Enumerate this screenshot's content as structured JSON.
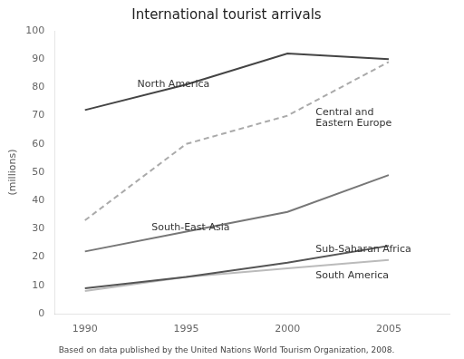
{
  "chart_data": {
    "type": "line",
    "title": "International tourist arrivals",
    "y_label": "(millions)",
    "caption": "Based on data published by the United Nations World Tourism Organization, 2008.",
    "x": [
      1990,
      1995,
      2000,
      2005
    ],
    "series": [
      {
        "name": "North America",
        "color": "#444444",
        "line_style": "solid",
        "values": [
          72,
          81,
          92,
          90
        ]
      },
      {
        "name": "Central and\nEastern Europe",
        "color": "#aaaaaa",
        "line_style": "dashed",
        "values": [
          33,
          60,
          70,
          89
        ]
      },
      {
        "name": "South-East Asia",
        "color": "#777777",
        "line_style": "solid",
        "values": [
          22,
          29,
          36,
          49
        ]
      },
      {
        "name": "Sub-Saharan Africa",
        "color": "#555555",
        "line_style": "solid",
        "values": [
          9,
          13,
          18,
          24
        ]
      },
      {
        "name": "South America",
        "color": "#bbbbbb",
        "line_style": "solid",
        "values": [
          8,
          13,
          16,
          19
        ]
      }
    ],
    "xlim": [
      1988.5,
      2008
    ],
    "xticks": [
      1990,
      1995,
      2000,
      2005
    ],
    "ylim": [
      0,
      100
    ],
    "yticks": [
      0,
      10,
      20,
      30,
      40,
      50,
      60,
      70,
      80,
      90,
      100
    ],
    "grid": false
  }
}
